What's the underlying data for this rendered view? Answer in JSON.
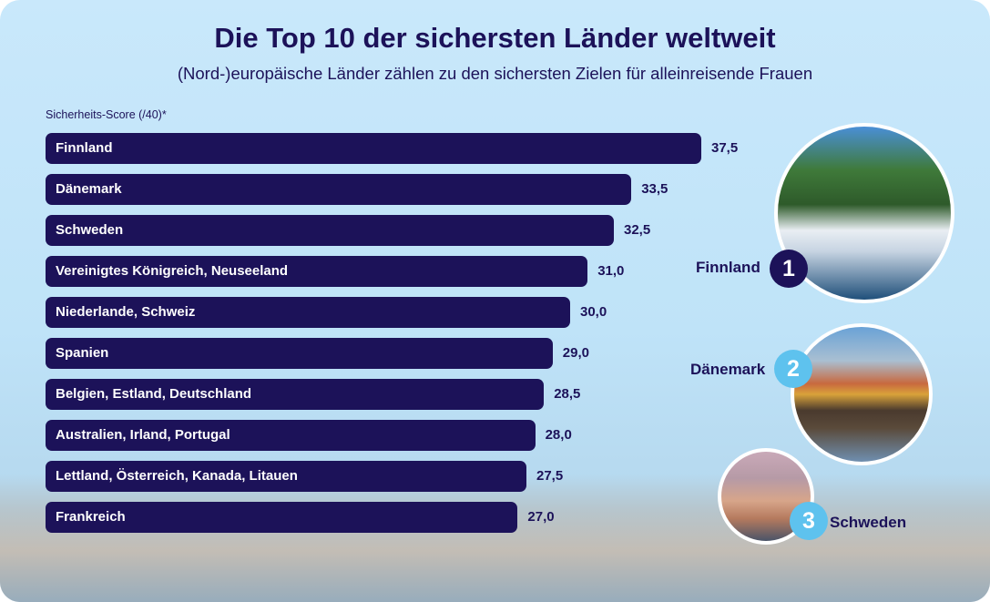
{
  "title": "Die Top 10 der sichersten Länder weltweit",
  "subtitle": "(Nord-)europäische Länder zählen zu den sichersten Zielen für alleinreisende Frauen",
  "colors": {
    "bar": "#1c1259",
    "rank1": "#1c1259",
    "rank23": "#5ec2ee"
  },
  "chart_data": {
    "type": "bar",
    "orientation": "horizontal",
    "ylabel": "Sicherheits-Score (/40)*",
    "xlim": [
      0,
      40
    ],
    "categories": [
      "Finnland",
      "Dänemark",
      "Schweden",
      "Vereinigtes Königreich, Neuseeland",
      "Niederlande, Schweiz",
      "Spanien",
      "Belgien, Estland, Deutschland",
      "Australien, Irland, Portugal",
      "Lettland, Österreich, Kanada, Litauen",
      "Frankreich"
    ],
    "values": [
      37.5,
      33.5,
      32.5,
      31.0,
      30.0,
      29.0,
      28.5,
      28.0,
      27.5,
      27.0
    ],
    "value_labels": [
      "37,5",
      "33,5",
      "32,5",
      "31,0",
      "30,0",
      "29,0",
      "28,5",
      "28,0",
      "27,5",
      "27,0"
    ],
    "grid": false
  },
  "top3": [
    {
      "rank": "1",
      "name": "Finnland"
    },
    {
      "rank": "2",
      "name": "Dänemark"
    },
    {
      "rank": "3",
      "name": "Schweden"
    }
  ]
}
